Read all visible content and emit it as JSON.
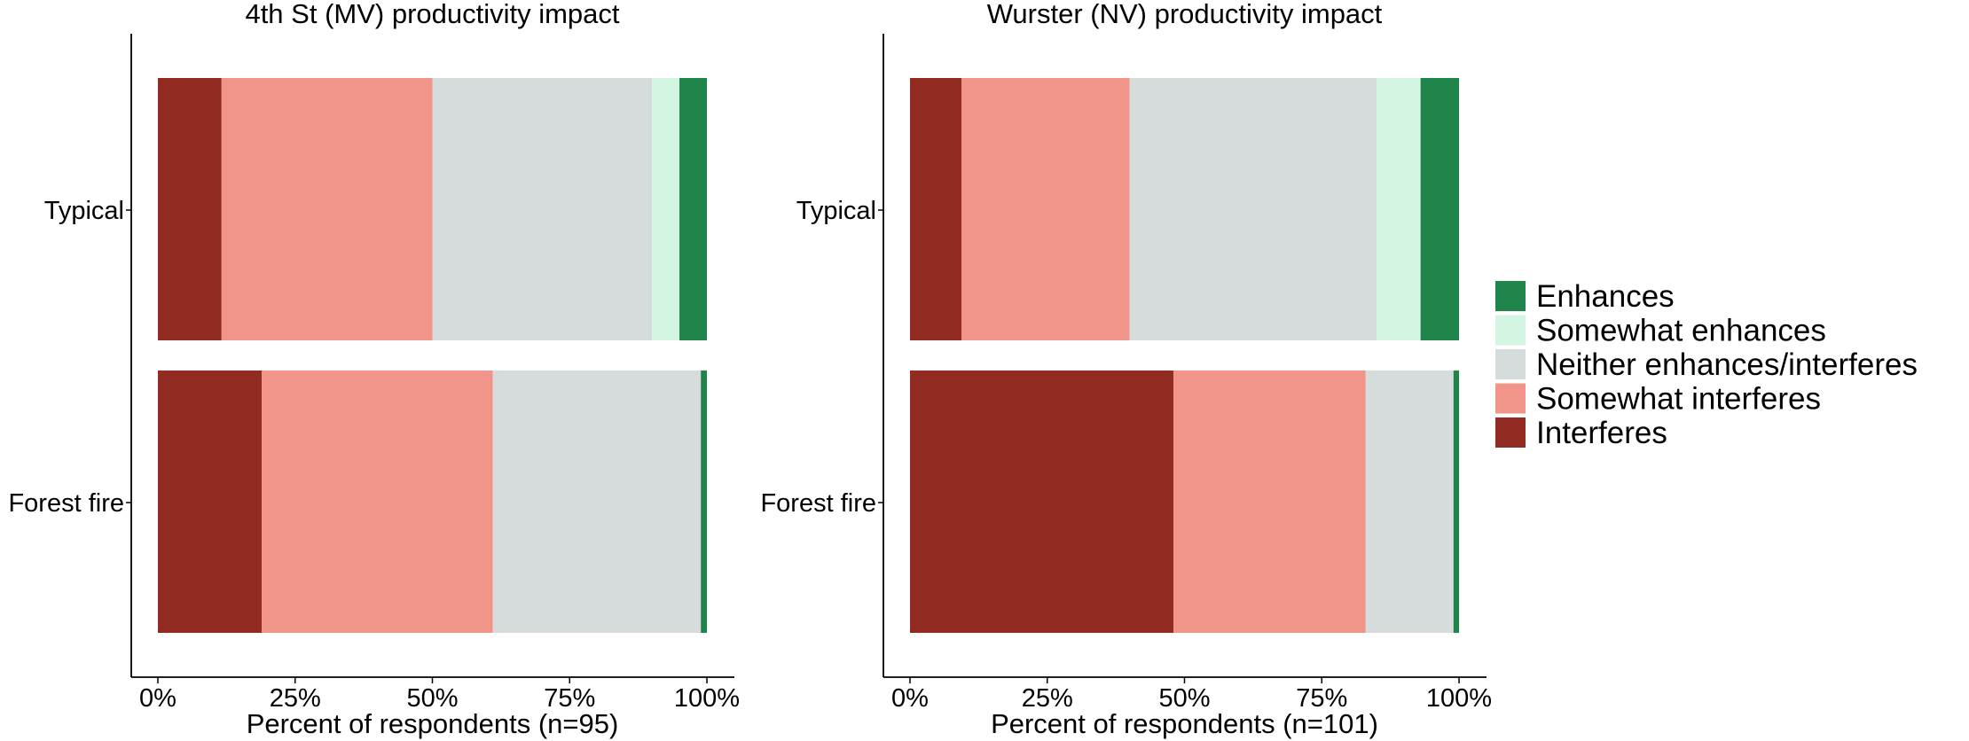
{
  "chart_data": {
    "type": "bar",
    "orientation": "horizontal",
    "stacked": true,
    "categories": [
      "Typical",
      "Forest fire"
    ],
    "x_ticks": [
      "0%",
      "25%",
      "50%",
      "75%",
      "100%"
    ],
    "xlim": [
      0,
      100
    ],
    "grid": false,
    "legend_position": "right",
    "legend": [
      {
        "name": "Enhances",
        "color": "#1E8449"
      },
      {
        "name": "Somewhat enhances",
        "color": "#D5F5E3"
      },
      {
        "name": "Neither enhances/interferes",
        "color": "#D6DBDB"
      },
      {
        "name": "Somewhat interferes",
        "color": "#F1948A"
      },
      {
        "name": "Interferes",
        "color": "#922B21"
      }
    ],
    "stack_order": [
      "Interferes",
      "Somewhat interferes",
      "Neither enhances/interferes",
      "Somewhat enhances",
      "Enhances"
    ],
    "panels": [
      {
        "title": "4th St (MV) productivity impact",
        "xlabel": "Percent of respondents (n=95)",
        "series": [
          {
            "name": "Interferes",
            "values": [
              11.6,
              18.9
            ]
          },
          {
            "name": "Somewhat interferes",
            "values": [
              38.4,
              42.1
            ]
          },
          {
            "name": "Neither enhances/interferes",
            "values": [
              40.0,
              37.9
            ]
          },
          {
            "name": "Somewhat enhances",
            "values": [
              5.0,
              0.0
            ]
          },
          {
            "name": "Enhances",
            "values": [
              5.0,
              1.1
            ]
          }
        ]
      },
      {
        "title": "Wurster (NV) productivity impact",
        "xlabel": "Percent of respondents (n=101)",
        "series": [
          {
            "name": "Interferes",
            "values": [
              9.4,
              48.0
            ]
          },
          {
            "name": "Somewhat interferes",
            "values": [
              30.6,
              35.0
            ]
          },
          {
            "name": "Neither enhances/interferes",
            "values": [
              45.0,
              16.0
            ]
          },
          {
            "name": "Somewhat enhances",
            "values": [
              8.0,
              0.0
            ]
          },
          {
            "name": "Enhances",
            "values": [
              7.0,
              1.0
            ]
          }
        ]
      }
    ]
  }
}
